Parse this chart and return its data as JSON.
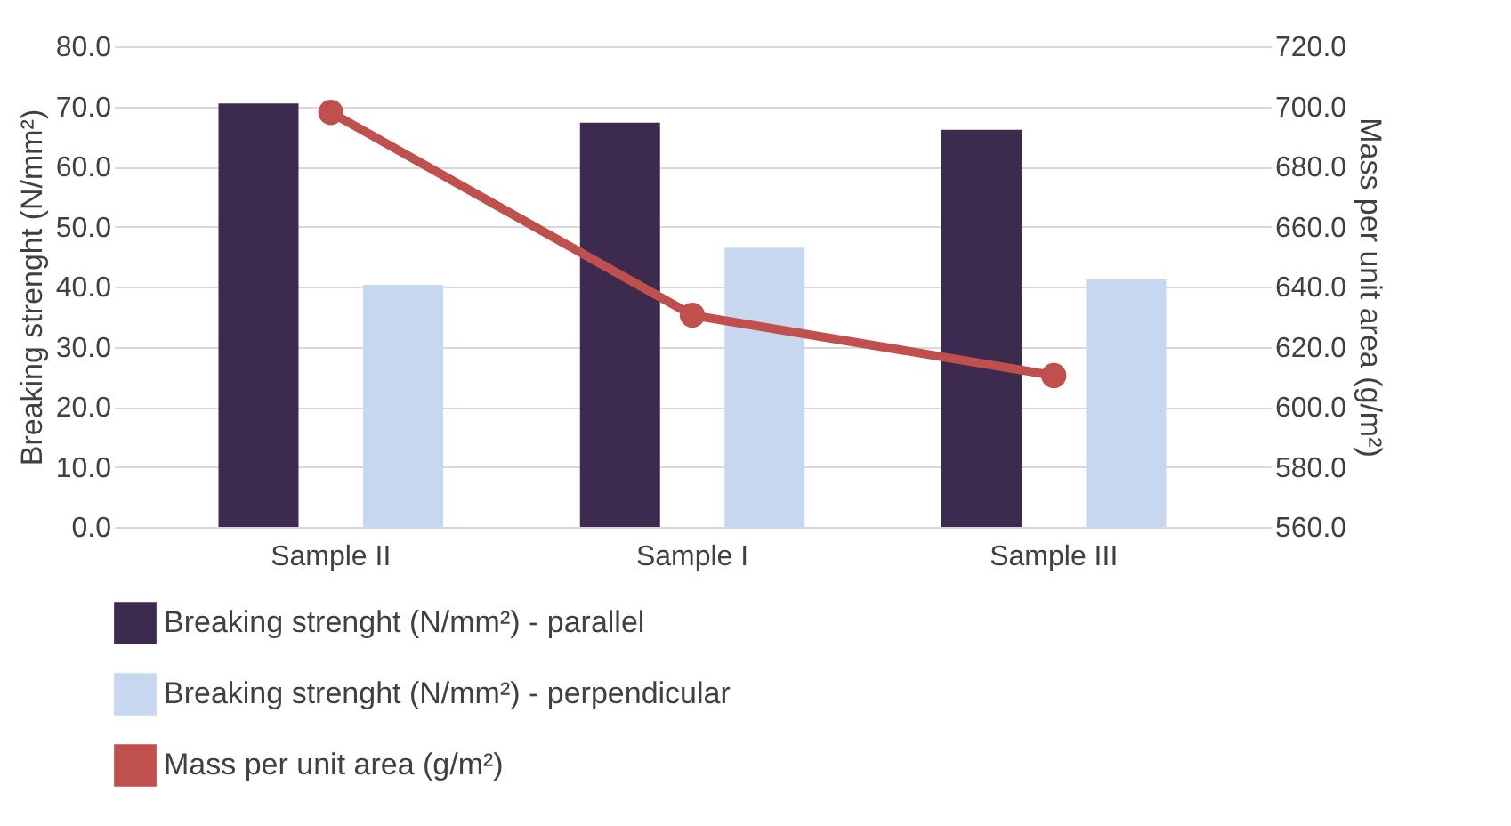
{
  "chart_data": {
    "type": "bar",
    "categories": [
      "Sample II",
      "Sample I",
      "Sample III"
    ],
    "ylabel": "Breaking strenght (N/mm²)",
    "y2label": "Mass per unit area (g/m²)",
    "series": [
      {
        "name": "Breaking strenght (N/mm²) - parallel",
        "color": "#3d2b4f",
        "values": [
          70.5,
          67.3,
          66.1
        ]
      },
      {
        "name": "Breaking strenght (N/mm²) - perpendicular",
        "color": "#c6d7ef",
        "values": [
          40.3,
          46.5,
          41.2
        ]
      },
      {
        "name": "Mass per unit area (g/m²)",
        "type": "line",
        "axis": "y2",
        "color": "#c0504d",
        "values": [
          698,
          630.5,
          610.4
        ]
      }
    ],
    "ylim": [
      0,
      80
    ],
    "yticks": [
      {
        "value": 0,
        "label": "0.0"
      },
      {
        "value": 10,
        "label": "10.0"
      },
      {
        "value": 20,
        "label": "20.0"
      },
      {
        "value": 30,
        "label": "30.0"
      },
      {
        "value": 40,
        "label": "40.0"
      },
      {
        "value": 50,
        "label": "50.0"
      },
      {
        "value": 60,
        "label": "60.0"
      },
      {
        "value": 70,
        "label": "70.0"
      },
      {
        "value": 80,
        "label": "80.0"
      }
    ],
    "y2lim": [
      560,
      720
    ],
    "y2ticks": [
      {
        "value": 560,
        "label": "560.0"
      },
      {
        "value": 580,
        "label": "580.0"
      },
      {
        "value": 600,
        "label": "600.0"
      },
      {
        "value": 620,
        "label": "620.0"
      },
      {
        "value": 640,
        "label": "640.0"
      },
      {
        "value": 660,
        "label": "660.0"
      },
      {
        "value": 680,
        "label": "680.0"
      },
      {
        "value": 700,
        "label": "700.0"
      },
      {
        "value": 720,
        "label": "720.0"
      }
    ],
    "grid": "y",
    "legend": "bottom",
    "marker": "circle",
    "line_style": "solid"
  }
}
